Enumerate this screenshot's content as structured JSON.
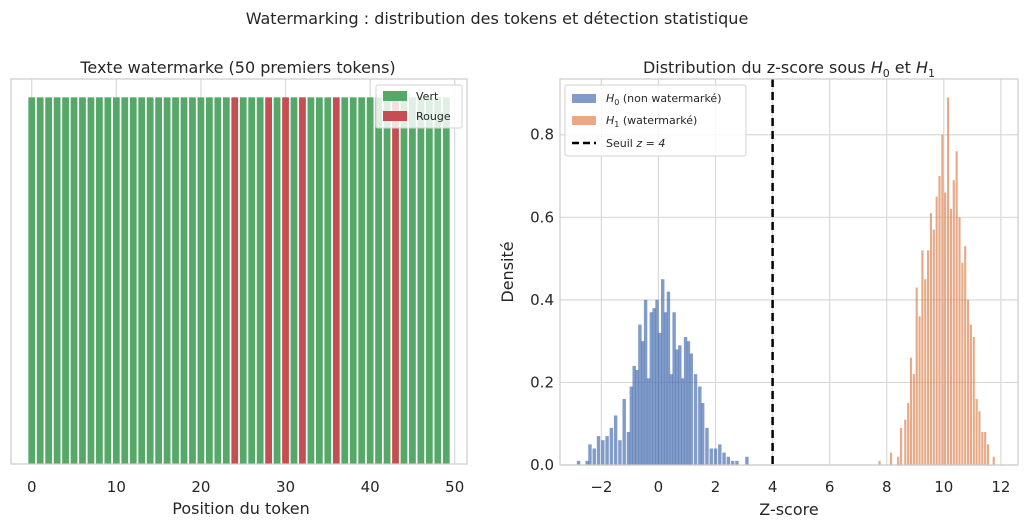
{
  "figure": {
    "suptitle": "Watermarking : distribution des tokens et détection statistique"
  },
  "colors": {
    "green": "#55a868",
    "red": "#c44e52",
    "blue": "#4c72b0",
    "orange": "#dd8452",
    "grid": "#d9d9d9",
    "axes_edge": "#cccccc",
    "text": "#262626",
    "threshold": "#000000"
  },
  "chart_data": [
    {
      "type": "bar",
      "title": "Texte watermarke (50 premiers tokens)",
      "xlabel": "Position du token",
      "ylabel": "",
      "xlim": [
        -2.45,
        51.45
      ],
      "ylim": [
        0,
        1.05
      ],
      "x_ticks": [
        0,
        10,
        20,
        30,
        40,
        50
      ],
      "x_tick_labels": [
        "0",
        "10",
        "20",
        "30",
        "40",
        "50"
      ],
      "y_ticks": [],
      "categories": [
        0,
        1,
        2,
        3,
        4,
        5,
        6,
        7,
        8,
        9,
        10,
        11,
        12,
        13,
        14,
        15,
        16,
        17,
        18,
        19,
        20,
        21,
        22,
        23,
        24,
        25,
        26,
        27,
        28,
        29,
        30,
        31,
        32,
        33,
        34,
        35,
        36,
        37,
        38,
        39,
        40,
        41,
        42,
        43,
        44,
        45,
        46,
        47,
        48,
        49
      ],
      "values": [
        1,
        1,
        1,
        1,
        1,
        1,
        1,
        1,
        1,
        1,
        1,
        1,
        1,
        1,
        1,
        1,
        1,
        1,
        1,
        1,
        1,
        1,
        1,
        1,
        1,
        1,
        1,
        1,
        1,
        1,
        1,
        1,
        1,
        1,
        1,
        1,
        1,
        1,
        1,
        1,
        1,
        1,
        1,
        1,
        1,
        1,
        1,
        1,
        1,
        1
      ],
      "token_colors": [
        "Vert",
        "Vert",
        "Vert",
        "Vert",
        "Vert",
        "Vert",
        "Vert",
        "Vert",
        "Vert",
        "Vert",
        "Vert",
        "Vert",
        "Vert",
        "Vert",
        "Vert",
        "Vert",
        "Vert",
        "Vert",
        "Vert",
        "Vert",
        "Vert",
        "Vert",
        "Vert",
        "Vert",
        "Rouge",
        "Vert",
        "Vert",
        "Vert",
        "Rouge",
        "Vert",
        "Rouge",
        "Vert",
        "Rouge",
        "Vert",
        "Vert",
        "Vert",
        "Rouge",
        "Vert",
        "Vert",
        "Vert",
        "Vert",
        "Vert",
        "Vert",
        "Rouge",
        "Vert",
        "Vert",
        "Vert",
        "Vert",
        "Vert",
        "Vert"
      ],
      "legend": {
        "placement": "top-right",
        "entries": [
          {
            "label": "Vert",
            "color_key": "green"
          },
          {
            "label": "Rouge",
            "color_key": "red"
          }
        ]
      },
      "grid": true
    },
    {
      "type": "histogram",
      "title_prefix": "Distribution du z-score sous ",
      "title_h0": "H",
      "title_h0_sub": "0",
      "title_middle": " et ",
      "title_h1": "H",
      "title_h1_sub": "1",
      "xlabel": "Z-score",
      "ylabel": "Densité",
      "xlim": [
        -3.45,
        12.6
      ],
      "ylim": [
        0,
        0.935
      ],
      "x_ticks": [
        -2,
        0,
        2,
        4,
        6,
        8,
        10,
        12
      ],
      "x_tick_labels": [
        "−2",
        "0",
        "2",
        "4",
        "6",
        "8",
        "10",
        "12"
      ],
      "y_ticks": [
        0,
        0.2,
        0.4,
        0.6,
        0.8
      ],
      "y_tick_labels": [
        "0.0",
        "0.2",
        "0.4",
        "0.6",
        "0.8"
      ],
      "grid": true,
      "series": [
        {
          "name": "H0 (non watermarké)",
          "legend_label_math": "H",
          "legend_label_sub": "0",
          "legend_label_rest": " (non watermarké)",
          "color_key": "blue",
          "bin_width": 0.12,
          "x": [
            -2.8,
            -2.5,
            -2.4,
            -2.25,
            -2.1,
            -1.95,
            -1.8,
            -1.65,
            -1.5,
            -1.35,
            -1.2,
            -1.05,
            -0.95,
            -0.85,
            -0.75,
            -0.65,
            -0.55,
            -0.45,
            -0.35,
            -0.25,
            -0.15,
            -0.05,
            0.05,
            0.15,
            0.25,
            0.35,
            0.45,
            0.55,
            0.65,
            0.75,
            0.85,
            0.95,
            1.05,
            1.15,
            1.3,
            1.45,
            1.55,
            1.7,
            1.85,
            2.0,
            2.15,
            2.3,
            2.45,
            2.6,
            2.75,
            3.1
          ],
          "values": [
            0.01,
            0.01,
            0.05,
            0.04,
            0.07,
            0.06,
            0.07,
            0.09,
            0.12,
            0.06,
            0.16,
            0.08,
            0.19,
            0.24,
            0.23,
            0.34,
            0.3,
            0.4,
            0.21,
            0.37,
            0.38,
            0.4,
            0.32,
            0.45,
            0.37,
            0.42,
            0.22,
            0.37,
            0.28,
            0.29,
            0.21,
            0.31,
            0.3,
            0.27,
            0.22,
            0.19,
            0.15,
            0.09,
            0.04,
            0.04,
            0.05,
            0.03,
            0.02,
            0.01,
            0.01,
            0.02
          ]
        },
        {
          "name": "H1 (watermarké)",
          "legend_label_math": "H",
          "legend_label_sub": "1",
          "legend_label_rest": " (watermarké)",
          "color_key": "orange",
          "bin_width": 0.075,
          "x": [
            7.75,
            8.15,
            8.4,
            8.5,
            8.65,
            8.75,
            8.85,
            8.95,
            9.05,
            9.15,
            9.25,
            9.35,
            9.45,
            9.55,
            9.65,
            9.75,
            9.85,
            9.95,
            10.05,
            10.15,
            10.25,
            10.35,
            10.45,
            10.55,
            10.65,
            10.75,
            10.85,
            10.95,
            11.05,
            11.15,
            11.25,
            11.35,
            11.45,
            11.55,
            11.75
          ],
          "values": [
            0.01,
            0.03,
            0.02,
            0.09,
            0.11,
            0.15,
            0.26,
            0.22,
            0.43,
            0.36,
            0.52,
            0.45,
            0.52,
            0.61,
            0.57,
            0.65,
            0.7,
            0.8,
            0.66,
            0.89,
            0.62,
            0.69,
            0.76,
            0.6,
            0.49,
            0.53,
            0.4,
            0.34,
            0.31,
            0.16,
            0.13,
            0.08,
            0.08,
            0.05,
            0.02
          ]
        }
      ],
      "threshold": {
        "x": 4,
        "legend_label_prefix": "Seuil ",
        "legend_label_math": "z = 4"
      },
      "legend": {
        "placement": "top-left"
      }
    }
  ]
}
